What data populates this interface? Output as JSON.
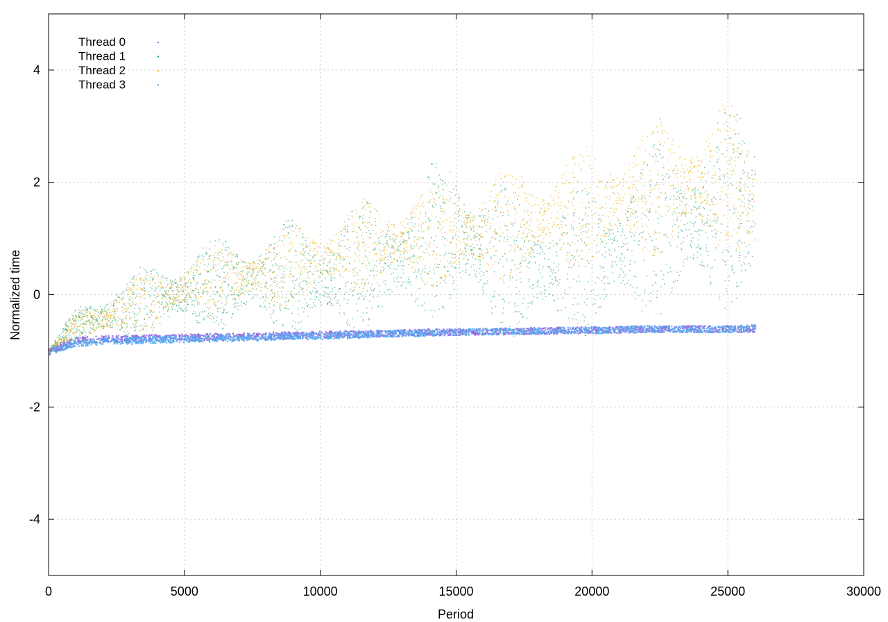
{
  "chart_data": {
    "type": "scatter",
    "title": "",
    "xlabel": "Period",
    "ylabel": "Normalized time",
    "xlim": [
      0,
      30000
    ],
    "ylim": [
      -5,
      5
    ],
    "x_ticks": [
      0,
      5000,
      10000,
      15000,
      20000,
      25000,
      30000
    ],
    "y_ticks": [
      -4,
      -2,
      0,
      2,
      4
    ],
    "x_tick_labels": [
      "0",
      "5000",
      "10000",
      "15000",
      "20000",
      "25000",
      "30000"
    ],
    "y_tick_labels": [
      "-4",
      "-2",
      "0",
      "2",
      "4"
    ],
    "grid": true,
    "legend_position": "top-left",
    "series": [
      {
        "name": "Thread 0",
        "color": "#9467e0",
        "x": [
          0,
          1000,
          2000,
          5000,
          10000,
          15000,
          20000,
          22000,
          25000,
          26000
        ],
        "y": [
          -1.0,
          -0.8,
          -0.78,
          -0.75,
          -0.7,
          -0.65,
          -0.62,
          -0.6,
          -0.6,
          -0.6
        ]
      },
      {
        "name": "Thread 1",
        "color": "#1a9e77",
        "x": [
          0,
          1000,
          2000,
          5000,
          7500,
          10000,
          12500,
          15000,
          17500,
          20000,
          22500,
          25000,
          26000
        ],
        "y": [
          -1.0,
          -0.55,
          -0.4,
          0.0,
          0.2,
          0.2,
          0.5,
          1.0,
          0.3,
          0.5,
          1.0,
          1.4,
          1.5
        ],
        "y_spread": [
          0.05,
          0.4,
          0.7,
          1.0,
          1.2,
          1.4,
          1.6,
          1.9,
          1.7,
          1.7,
          2.0,
          2.3,
          2.3
        ]
      },
      {
        "name": "Thread 2",
        "color": "#e6ab02",
        "x": [
          0,
          1000,
          2000,
          5000,
          7500,
          10000,
          12500,
          15000,
          17500,
          20000,
          22500,
          25000,
          26000
        ],
        "y": [
          -1.0,
          -0.55,
          -0.45,
          0.1,
          0.3,
          0.6,
          0.9,
          1.0,
          1.2,
          1.5,
          1.8,
          2.0,
          1.6
        ],
        "y_spread": [
          0.05,
          0.3,
          0.6,
          0.8,
          0.9,
          1.0,
          1.1,
          1.2,
          1.3,
          1.4,
          1.6,
          1.7,
          1.5
        ]
      },
      {
        "name": "Thread 3",
        "color": "#56a8ef",
        "x": [
          0,
          1000,
          2000,
          5000,
          10000,
          15000,
          20000,
          22000,
          25000,
          26000
        ],
        "y": [
          -1.0,
          -0.85,
          -0.82,
          -0.78,
          -0.72,
          -0.65,
          -0.62,
          -0.6,
          -0.6,
          -0.58
        ]
      }
    ]
  }
}
